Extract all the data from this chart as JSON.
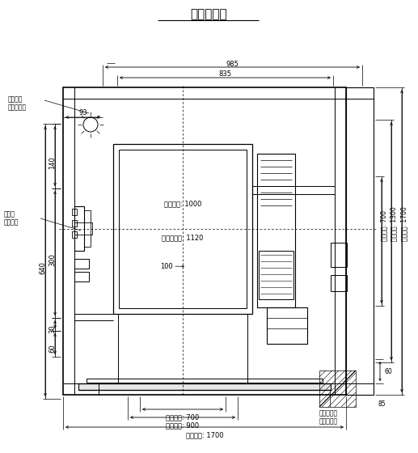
{
  "title": "井道平面图",
  "bg_color": "#ffffff",
  "lc": "#000000",
  "tc": "#000000",
  "fig_width": 5.17,
  "fig_height": 5.6,
  "dpi": 100,
  "fs_small": 5.5,
  "fs_dim": 6.0,
  "fs_title": 11,
  "labels": {
    "jd_lighting": "井道照明\n由客户自理",
    "suihang": "随行电\n缆固定座",
    "concrete": "混凝土填充\n由客户自理",
    "dim_985": "985",
    "dim_835": "835",
    "dim_93": "93",
    "dim_640": "640",
    "dim_140": "140",
    "dim_300": "300",
    "dim_60l": "60",
    "dim_30": "30",
    "dim_1700r": "井道净宽: 1700",
    "dim_1300r": "轿厢净宽: 1300",
    "dim_700r": "厅门净宽: 700",
    "dim_60r": "60",
    "dim_85r": "85",
    "car_depth": "轿厢净深: 1000",
    "car_guide": "轿厢导轨距: 1120",
    "dim_100": "100",
    "dim_700b": "开门宽度: 700",
    "dim_900b": "门洞宽度: 900",
    "dim_1700b": "井道净宽: 1700"
  }
}
